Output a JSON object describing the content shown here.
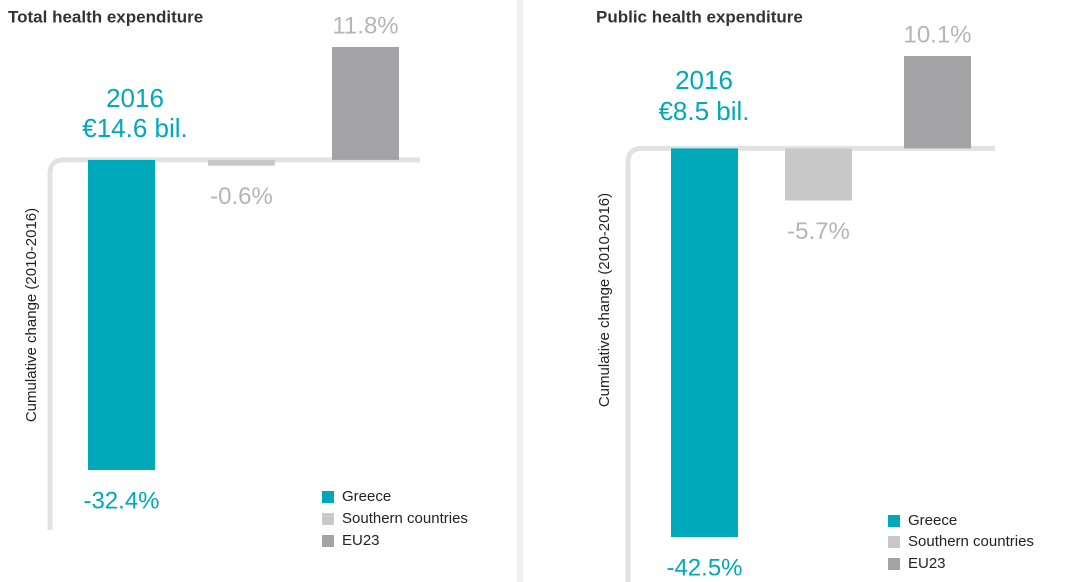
{
  "chart_data": [
    {
      "type": "bar",
      "title": "Total health expenditure",
      "y_label": "Cumulative change (2010-2016)",
      "annotations": [
        "2016",
        "€14.6 bil."
      ],
      "series": [
        {
          "name": "Greece",
          "color": "#00a9b9",
          "values": [
            -32.4
          ],
          "value_labels": [
            "-32.4%"
          ]
        },
        {
          "name": "Southern countries",
          "color": "#c8c8c9",
          "values": [
            -0.6
          ],
          "value_labels": [
            "-0.6%"
          ]
        },
        {
          "name": "EU23",
          "color": "#a3a3a5",
          "values": [
            11.8
          ],
          "value_labels": [
            "11.8%"
          ]
        }
      ]
    },
    {
      "type": "bar",
      "title": "Public health expenditure",
      "y_label": "Cumulative change (2010-2016)",
      "annotations": [
        "2016",
        "€8.5 bil."
      ],
      "series": [
        {
          "name": "Greece",
          "color": "#00a9b9",
          "values": [
            -42.5
          ],
          "value_labels": [
            "-42.5%"
          ]
        },
        {
          "name": "Southern countries",
          "color": "#c8c8c9",
          "values": [
            -5.7
          ],
          "value_labels": [
            "-5.7%"
          ]
        },
        {
          "name": "EU23",
          "color": "#a3a3a5",
          "values": [
            10.1
          ],
          "value_labels": [
            "10.1%"
          ]
        }
      ]
    }
  ]
}
